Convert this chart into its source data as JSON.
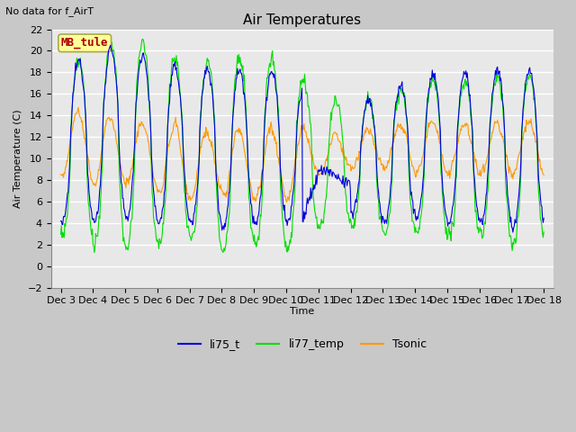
{
  "title": "Air Temperatures",
  "subtitle": "No data for f_AirT",
  "ylabel": "Air Temperature (C)",
  "xlabel": "Time",
  "ylim": [
    -2,
    22
  ],
  "yticks": [
    -2,
    0,
    2,
    4,
    6,
    8,
    10,
    12,
    14,
    16,
    18,
    20,
    22
  ],
  "xtick_labels": [
    "Dec 3",
    "Dec 4",
    "Dec 5",
    "Dec 6",
    "Dec 7",
    "Dec 8",
    "Dec 9",
    "Dec 10",
    "Dec 11",
    "Dec 12",
    "Dec 13",
    "Dec 14",
    "Dec 15",
    "Dec 16",
    "Dec 17",
    "Dec 18"
  ],
  "legend_labels": [
    "li75_t",
    "li77_temp",
    "Tsonic"
  ],
  "line_colors": [
    "#0000dd",
    "#00dd00",
    "#ff9900"
  ],
  "annotation_text": "MB_tule",
  "annotation_color": "#aa0000",
  "annotation_bg": "#ffff99",
  "annotation_edge": "#aaaa44",
  "fig_bg": "#c8c8c8",
  "plot_bg": "#e8e8e8",
  "grid_color": "#ffffff",
  "title_fontsize": 11,
  "label_fontsize": 8,
  "tick_fontsize": 8
}
